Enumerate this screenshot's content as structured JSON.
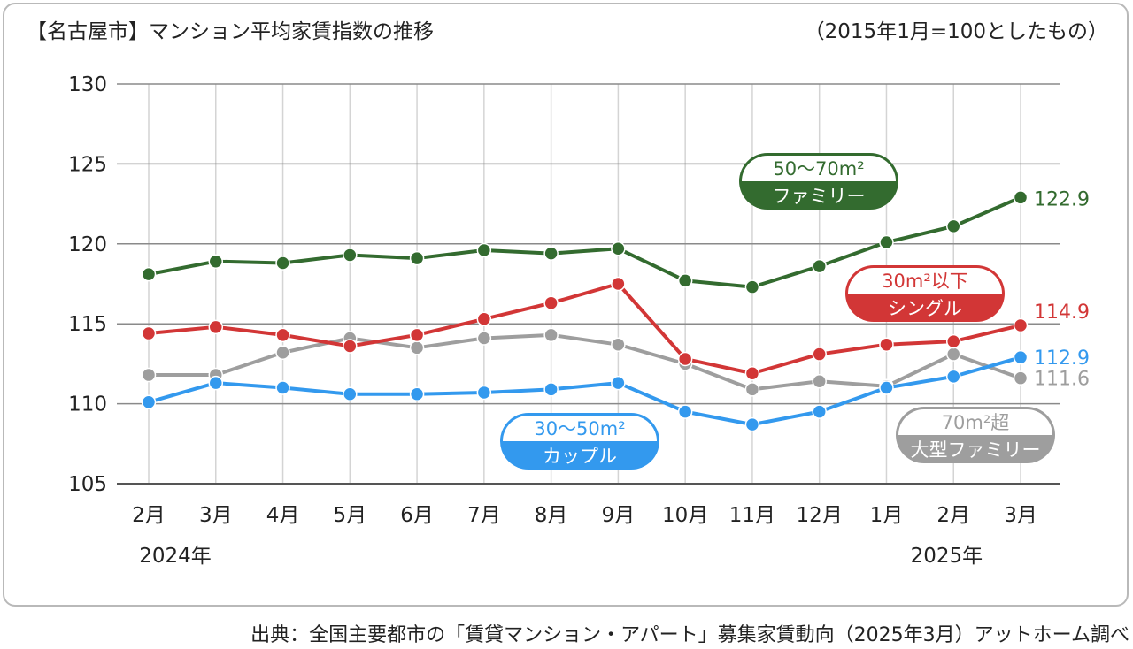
{
  "chart_data": {
    "type": "line",
    "title": "【名古屋市】マンション平均家賃指数の推移",
    "subtitle": "（2015年1月=100としたもの）",
    "source": "出典：全国主要都市の「賃貸マンション・アパート」募集家賃動向（2025年3月）アットホーム調べ",
    "categories": [
      "2月",
      "3月",
      "4月",
      "5月",
      "6月",
      "7月",
      "8月",
      "9月",
      "10月",
      "11月",
      "12月",
      "1月",
      "2月",
      "3月"
    ],
    "year_labels": [
      {
        "label": "2024年",
        "index": 0
      },
      {
        "label": "2025年",
        "index": 11.5
      }
    ],
    "ylim": [
      105,
      130
    ],
    "yticks": [
      105,
      110,
      115,
      120,
      125,
      130
    ],
    "grid": true,
    "series": [
      {
        "key": "large",
        "label_line1": "70m²超",
        "label_line2": "大型ファミリー",
        "color": "#9e9e9e",
        "values": [
          111.8,
          111.8,
          113.2,
          114.1,
          113.5,
          114.1,
          114.3,
          113.7,
          112.5,
          110.9,
          111.4,
          111.1,
          113.1,
          111.6
        ],
        "end_label": "111.6"
      },
      {
        "key": "couple",
        "label_line1": "30〜50m²",
        "label_line2": "カップル",
        "color": "#3399ee",
        "values": [
          110.1,
          111.3,
          111.0,
          110.6,
          110.6,
          110.7,
          110.9,
          111.3,
          109.5,
          108.7,
          109.5,
          111.0,
          111.7,
          112.9
        ],
        "end_label": "112.9"
      },
      {
        "key": "single",
        "label_line1": "30m²以下",
        "label_line2": "シングル",
        "color": "#d23636",
        "values": [
          114.4,
          114.8,
          114.3,
          113.6,
          114.3,
          115.3,
          116.3,
          117.5,
          112.8,
          111.9,
          113.1,
          113.7,
          113.9,
          114.9
        ],
        "end_label": "114.9"
      },
      {
        "key": "family",
        "label_line1": "50〜70m²",
        "label_line2": "ファミリー",
        "color": "#336b2f",
        "values": [
          118.1,
          118.9,
          118.8,
          119.3,
          119.1,
          119.6,
          119.4,
          119.7,
          117.7,
          117.3,
          118.6,
          120.1,
          121.1,
          122.9
        ],
        "end_label": "122.9"
      }
    ]
  }
}
